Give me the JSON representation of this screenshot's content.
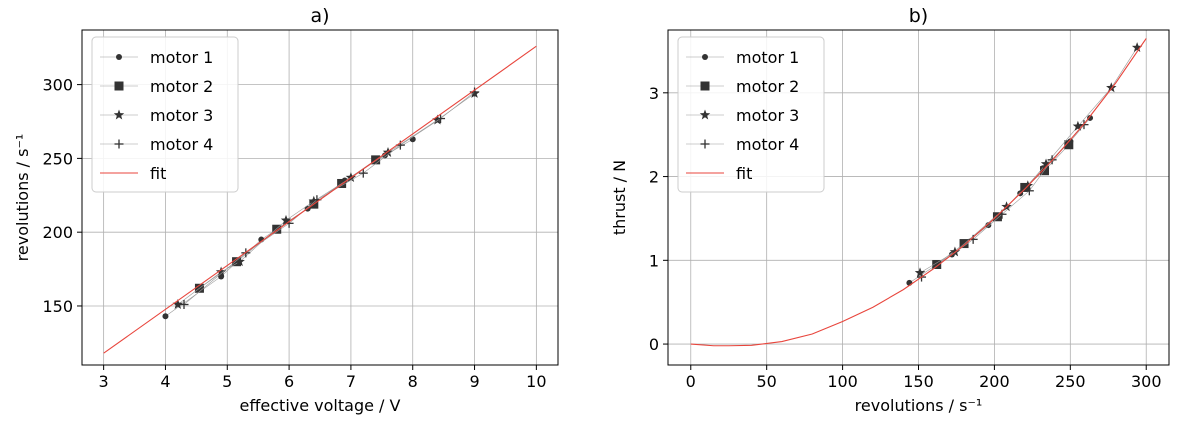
{
  "chart_data": [
    {
      "type": "scatter",
      "title": "a)",
      "xlabel": "effective voltage / V",
      "ylabel": "revolutions / s⁻¹",
      "xlim": [
        2.65,
        10.35
      ],
      "ylim": [
        110,
        337
      ],
      "xticks": [
        3,
        4,
        5,
        6,
        7,
        8,
        9,
        10
      ],
      "yticks": [
        150,
        200,
        250,
        300
      ],
      "xtick_labels": [
        "3",
        "4",
        "5",
        "6",
        "7",
        "8",
        "9",
        "10"
      ],
      "ytick_labels": [
        "150",
        "200",
        "250",
        "300"
      ],
      "grid": true,
      "legend_position": "top-left",
      "series": [
        {
          "name": "motor 1",
          "marker": "dot",
          "x": [
            4.0,
            4.9,
            5.55,
            6.3,
            6.9,
            7.55,
            8.0
          ],
          "y": [
            143,
            170,
            195,
            216,
            235,
            252,
            263
          ]
        },
        {
          "name": "motor 2",
          "marker": "square",
          "x": [
            4.55,
            5.15,
            5.8,
            6.4,
            6.85,
            7.4
          ],
          "y": [
            162,
            180,
            202,
            219,
            233,
            249
          ]
        },
        {
          "name": "motor 3",
          "marker": "star",
          "x": [
            4.2,
            4.9,
            5.2,
            5.95,
            6.4,
            7.0,
            7.6,
            8.4,
            9.0
          ],
          "y": [
            151,
            173,
            180,
            208,
            221,
            237,
            254,
            276,
            294
          ]
        },
        {
          "name": "motor 4",
          "marker": "plus",
          "x": [
            4.3,
            5.3,
            6.0,
            6.45,
            7.2,
            7.8,
            8.45,
            9.0
          ],
          "y": [
            151,
            186,
            206,
            222,
            240,
            259,
            277,
            295
          ]
        },
        {
          "name": "fit",
          "marker": "line",
          "color": "#e8453c",
          "x": [
            3.0,
            10.0
          ],
          "y": [
            118,
            326
          ]
        }
      ]
    },
    {
      "type": "scatter",
      "title": "b)",
      "xlabel": "revolutions / s⁻¹",
      "ylabel": "thrust / N",
      "xlim": [
        -15,
        315
      ],
      "ylim": [
        -0.25,
        3.75
      ],
      "xticks": [
        0,
        50,
        100,
        150,
        200,
        250,
        300
      ],
      "yticks": [
        0,
        1,
        2,
        3
      ],
      "xtick_labels": [
        "0",
        "50",
        "100",
        "150",
        "200",
        "250",
        "300"
      ],
      "ytick_labels": [
        "0",
        "1",
        "2",
        "3"
      ],
      "grid": true,
      "legend_position": "top-left",
      "series": [
        {
          "name": "motor 1",
          "marker": "dot",
          "x": [
            144,
            172,
            196,
            217,
            232,
            250,
            263
          ],
          "y": [
            0.73,
            1.07,
            1.42,
            1.8,
            2.1,
            2.42,
            2.7
          ]
        },
        {
          "name": "motor 2",
          "marker": "square",
          "x": [
            162,
            180,
            202,
            220,
            233,
            249
          ],
          "y": [
            0.95,
            1.2,
            1.52,
            1.87,
            2.07,
            2.38
          ]
        },
        {
          "name": "motor 3",
          "marker": "star",
          "x": [
            151,
            174,
            208,
            222,
            234,
            255,
            277,
            294
          ],
          "y": [
            0.85,
            1.1,
            1.64,
            1.89,
            2.15,
            2.6,
            3.06,
            3.54
          ]
        },
        {
          "name": "motor 4",
          "marker": "plus",
          "x": [
            152,
            186,
            205,
            223,
            238,
            259
          ],
          "y": [
            0.8,
            1.25,
            1.55,
            1.83,
            2.2,
            2.62
          ]
        },
        {
          "name": "fit",
          "marker": "line",
          "color": "#e8453c",
          "x": [
            0,
            15,
            25,
            40,
            60,
            80,
            100,
            120,
            140,
            160,
            180,
            200,
            220,
            240,
            260,
            280,
            300
          ],
          "y": [
            0.0,
            -0.02,
            -0.02,
            -0.015,
            0.03,
            0.12,
            0.27,
            0.44,
            0.65,
            0.9,
            1.18,
            1.5,
            1.85,
            2.23,
            2.65,
            3.12,
            3.65
          ]
        }
      ]
    }
  ]
}
